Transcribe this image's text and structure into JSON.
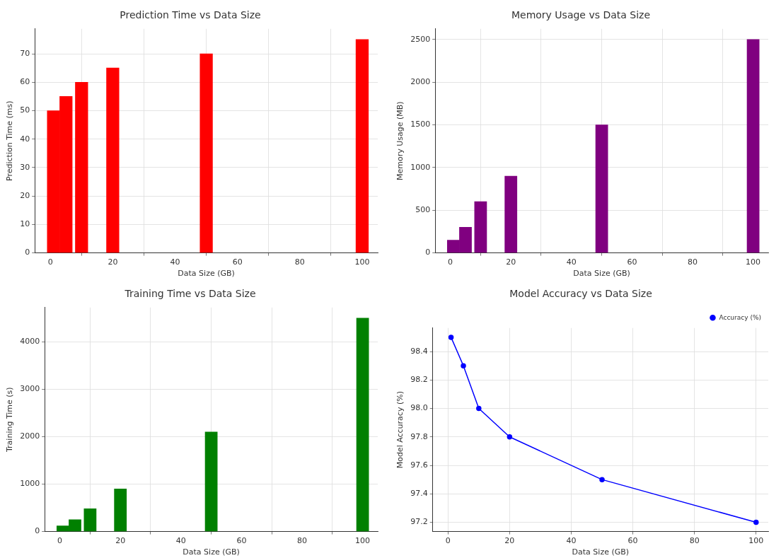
{
  "chart_data": [
    {
      "type": "bar",
      "title": "Prediction Time vs Data Size",
      "xlabel": "Data Size (GB)",
      "ylabel": "Prediction Time (ms)",
      "x": [
        1,
        5,
        10,
        20,
        50,
        100
      ],
      "values": [
        50,
        55,
        60,
        65,
        70,
        75
      ],
      "color": "#ff0000",
      "xlim": [
        -5,
        105
      ],
      "xticks": [
        0,
        20,
        40,
        60,
        80,
        100
      ],
      "ylim": [
        0,
        78.75
      ],
      "yticks": [
        0,
        10,
        20,
        30,
        40,
        50,
        60,
        70
      ],
      "grid": true
    },
    {
      "type": "bar",
      "title": "Memory Usage vs Data Size",
      "xlabel": "Data Size (GB)",
      "ylabel": "Memory Usage (MB)",
      "x": [
        1,
        5,
        10,
        20,
        50,
        100
      ],
      "values": [
        150,
        300,
        600,
        900,
        1500,
        2500
      ],
      "color": "#800080",
      "xlim": [
        -5,
        105
      ],
      "xticks": [
        0,
        20,
        40,
        60,
        80,
        100
      ],
      "ylim": [
        0,
        2625
      ],
      "yticks": [
        0,
        500,
        1000,
        1500,
        2000,
        2500
      ],
      "grid": true
    },
    {
      "type": "bar",
      "title": "Training Time vs Data Size",
      "xlabel": "Data Size (GB)",
      "ylabel": "Training Time (s)",
      "x": [
        1,
        5,
        10,
        20,
        50,
        100
      ],
      "values": [
        120,
        250,
        480,
        900,
        2100,
        4500
      ],
      "color": "#008000",
      "xlim": [
        -5,
        105
      ],
      "xticks": [
        0,
        20,
        40,
        60,
        80,
        100
      ],
      "ylim": [
        0,
        4725
      ],
      "yticks": [
        0,
        1000,
        2000,
        3000,
        4000
      ],
      "grid": true
    },
    {
      "type": "line",
      "title": "Model Accuracy vs Data Size",
      "xlabel": "Data Size (GB)",
      "ylabel": "Model Accuracy (%)",
      "x": [
        1,
        5,
        10,
        20,
        50,
        100
      ],
      "series": [
        {
          "name": "Accuracy (%)",
          "color": "#0000ff",
          "values": [
            98.5,
            98.3,
            98.0,
            97.8,
            97.5,
            97.2
          ]
        }
      ],
      "xlim": [
        -4.95,
        103.95
      ],
      "xticks": [
        0,
        20,
        40,
        60,
        80,
        100
      ],
      "ylim": [
        97.135,
        98.565
      ],
      "yticks": [
        {
          "value": 97.2,
          "label": "97.2"
        },
        {
          "value": 97.4,
          "label": "97.4"
        },
        {
          "value": 97.6,
          "label": "97.6"
        },
        {
          "value": 97.8,
          "label": "97.8"
        },
        {
          "value": 98.0,
          "label": "98.0"
        },
        {
          "value": 98.2,
          "label": "98.2"
        },
        {
          "value": 98.4,
          "label": "98.4"
        }
      ],
      "grid": true,
      "legend": "top right",
      "marker": "circle"
    }
  ]
}
